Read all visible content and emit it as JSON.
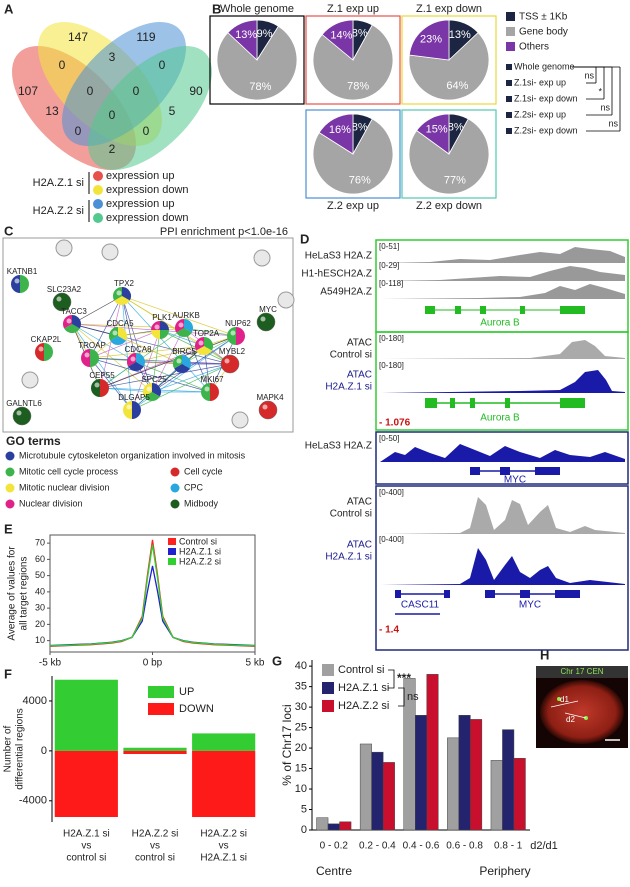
{
  "panels": [
    "A",
    "B",
    "C",
    "D",
    "E",
    "F",
    "G",
    "H"
  ],
  "venn": {
    "numbers": [
      107,
      147,
      119,
      90,
      0,
      3,
      0,
      13,
      0,
      0,
      5,
      0,
      0,
      0,
      2
    ],
    "legend": [
      {
        "name": "H2A.Z.1 si",
        "items": [
          "expression up",
          "expression down"
        ],
        "colors": [
          "#e8504a",
          "#f3e43a"
        ]
      },
      {
        "name": "H2A.Z.2 si",
        "items": [
          "expression up",
          "expression down"
        ],
        "colors": [
          "#4a90d6",
          "#52c98f"
        ]
      }
    ]
  },
  "pie_legend": {
    "labels": [
      "TSS ± 1Kb",
      "Gene body",
      "Others"
    ],
    "colors": [
      "#1c2541",
      "#a5a5a5",
      "#7a35a6"
    ]
  },
  "significance": {
    "labels": [
      "Whole genome",
      "Z.1si- exp up",
      "Z.1si- exp down",
      "Z.2si- exp up",
      "Z.2si- exp down"
    ],
    "marks": [
      "ns",
      "*",
      "ns",
      "ns"
    ]
  },
  "chart_data": [
    {
      "type": "pie",
      "title": "Whole genome",
      "values": [
        9,
        78,
        13
      ],
      "value_labels": [
        "9%",
        "78%",
        "13%"
      ],
      "border_color": "#000000"
    },
    {
      "type": "pie",
      "title": "Z.1 exp up",
      "values": [
        8,
        78,
        14
      ],
      "value_labels": [
        "8%",
        "78%",
        "14%"
      ],
      "border_color": "#e8504a"
    },
    {
      "type": "pie",
      "title": "Z.1 exp down",
      "values": [
        13,
        64,
        23
      ],
      "value_labels": [
        "13%",
        "64%",
        "23%"
      ],
      "border_color": "#e8d83a"
    },
    {
      "type": "pie",
      "title": "Z.2 exp up",
      "values": [
        8,
        76,
        16
      ],
      "value_labels": [
        "8%",
        "76%",
        "16%"
      ],
      "border_color": "#4a90d6"
    },
    {
      "type": "pie",
      "title": "Z.2 exp down",
      "values": [
        8,
        77,
        15
      ],
      "value_labels": [
        "8%",
        "77%",
        "15%"
      ],
      "border_color": "#52c9b0"
    },
    {
      "type": "line",
      "ylabel": [
        "Average of values for",
        "all target regions"
      ],
      "x": [
        -5,
        -4,
        -3,
        -2,
        -1.5,
        -1,
        -0.5,
        -0.25,
        0,
        0.25,
        0.5,
        1,
        1.5,
        2,
        3,
        4,
        5
      ],
      "xlim": [
        -5,
        5
      ],
      "xticks": [
        {
          "value": -5,
          "label": "-5 kb"
        },
        {
          "value": 0,
          "label": "0 bp"
        },
        {
          "value": 5,
          "label": "5 kb"
        }
      ],
      "ylim": [
        3,
        75
      ],
      "yticks": [
        10,
        20,
        30,
        40,
        50,
        60,
        70
      ],
      "series": [
        {
          "name": "Control si",
          "color": "#ff2020",
          "values": [
            6.5,
            7,
            7.5,
            8.5,
            9.5,
            12,
            25,
            50,
            72,
            50,
            25,
            12,
            9.5,
            8.5,
            7.5,
            7,
            6.5
          ]
        },
        {
          "name": "H2A.Z.1 si",
          "color": "#2020d0",
          "values": [
            7,
            7.5,
            8,
            9,
            10,
            12,
            22,
            40,
            56,
            40,
            22,
            12,
            10,
            9,
            8,
            7.5,
            7
          ]
        },
        {
          "name": "H2A.Z.2 si",
          "color": "#30d030",
          "values": [
            6.8,
            7.2,
            7.8,
            8.8,
            9.8,
            12,
            24,
            48,
            69,
            48,
            24,
            12,
            9.8,
            8.8,
            7.8,
            7.2,
            6.8
          ]
        }
      ]
    },
    {
      "type": "bar",
      "stacked": true,
      "ylabel": [
        "Number of",
        "differential regions"
      ],
      "categories": [
        [
          "H2A.Z.1 si",
          "vs",
          "control si"
        ],
        [
          "H2A.Z.2 si",
          "vs",
          "control si"
        ],
        [
          "H2A.Z.2 si",
          "vs",
          "H2A.Z.1 si"
        ]
      ],
      "ylim": [
        -5700,
        6000
      ],
      "yticks": [
        -4000,
        0,
        4000
      ],
      "series": [
        {
          "name": "UP",
          "color": "#33cc33",
          "values": [
            5700,
            250,
            1400
          ]
        },
        {
          "name": "DOWN",
          "color": "#ff1a1a",
          "values": [
            -5300,
            -250,
            -5300
          ]
        }
      ]
    },
    {
      "type": "bar",
      "ylabel": "% of Chr17 loci",
      "xlabel": "d2/d1",
      "annotations": [
        "Centre",
        "Periphery"
      ],
      "significance": [
        "***",
        "ns"
      ],
      "categories": [
        "0 - 0.2",
        "0.2 - 0.4",
        "0.4 - 0.6",
        "0.6 - 0.8",
        "0.8 - 1"
      ],
      "ylim": [
        0,
        41.5
      ],
      "yticks": [
        0,
        5,
        10,
        15,
        20,
        25,
        30,
        35,
        40
      ],
      "series": [
        {
          "name": "Control si",
          "color": "#a0a0a0",
          "values": [
            3,
            21,
            37,
            22.5,
            17
          ]
        },
        {
          "name": "H2A.Z.1 si",
          "color": "#23236e",
          "values": [
            1.5,
            19,
            28,
            28,
            24.5
          ]
        },
        {
          "name": "H2A.Z.2 si",
          "color": "#c8102e",
          "values": [
            2,
            16.5,
            38,
            27,
            17.5
          ]
        }
      ]
    }
  ],
  "ppi": {
    "title": "PPI enrichment p<1.0e-16",
    "nodes": [
      "KATNB1",
      "SLC23A2",
      "TACC3",
      "TPX2",
      "CKAP2L",
      "TROAP",
      "CDCA5",
      "CDCA8",
      "PLK1",
      "AURKB",
      "TOP2A",
      "BIRC5",
      "MYBL2",
      "NUP62",
      "MYC",
      "CEP55",
      "SPC25",
      "DLGAP5",
      "MKI67",
      "GALNTL6",
      "MAPK4"
    ]
  },
  "go_terms": {
    "title": "GO terms",
    "terms": [
      {
        "name": "Microtubule cytoskeleton organization involved in mitosis",
        "color": "#2b3f9e"
      },
      {
        "name": "Mitotic cell cycle process",
        "color": "#3cb44b"
      },
      {
        "name": "Mitotic nuclear division",
        "color": "#f2e43a"
      },
      {
        "name": "Nuclear division",
        "color": "#e0218a"
      },
      {
        "name": "Cell cycle",
        "color": "#d62a2a"
      },
      {
        "name": "CPC",
        "color": "#29a8e0"
      },
      {
        "name": "Midbody",
        "color": "#1d5e20"
      }
    ]
  },
  "tracks": {
    "groups": [
      {
        "rows": [
          {
            "label": "HeLaS3 H2A.Z",
            "range": "[0-51]"
          },
          {
            "label": "H1-hESCH2A.Z",
            "range": "[0-29]"
          },
          {
            "label": "A549H2A.Z",
            "range": "[0-118]"
          }
        ],
        "genes": [
          "Aurora B"
        ]
      },
      {
        "rows": [
          {
            "label": [
              "ATAC",
              "Control si"
            ],
            "range": "[0-180]"
          },
          {
            "label": [
              "ATAC",
              "H2A.Z.1 si"
            ],
            "range": "[0-180]"
          }
        ],
        "genes": [
          "Aurora B"
        ],
        "score": "- 1.076"
      },
      {
        "rows": [
          {
            "label": "HeLaS3 H2A.Z",
            "range": "[0-50]"
          }
        ],
        "genes": [
          "MYC"
        ]
      },
      {
        "rows": [
          {
            "label": [
              "ATAC",
              "Control si"
            ],
            "range": "[0-400]"
          },
          {
            "label": [
              "ATAC",
              "H2A.Z.1 si"
            ],
            "range": "[0-400]"
          }
        ],
        "genes": [
          "CASC11",
          "MYC"
        ],
        "score": "- 1.4"
      }
    ]
  },
  "microscopy": {
    "title": "Chr 17 CEN",
    "labels": [
      "d1",
      "d2"
    ]
  }
}
